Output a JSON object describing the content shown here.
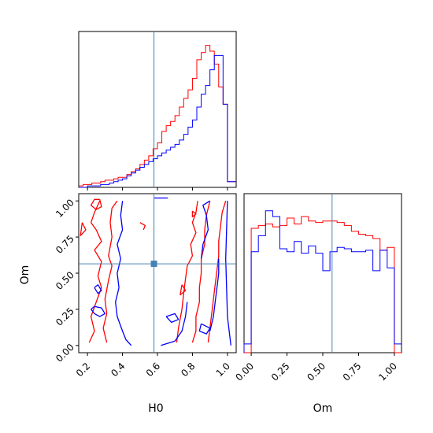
{
  "colors": {
    "series_a": "#ff0000",
    "series_b": "#0000ff",
    "truth": "#4682b4"
  },
  "chart_data": {
    "type": "corner",
    "parameters": [
      "H0",
      "Om"
    ],
    "truth": {
      "H0": 0.58,
      "Om": 0.565
    },
    "panels": [
      {
        "name": "H0-marginal",
        "type": "histogram-step",
        "xlim": [
          0.15,
          1.05
        ],
        "xticks": [
          0.2,
          0.4,
          0.6,
          0.8,
          1.0
        ],
        "bin_edges": [
          0.15,
          0.175,
          0.2,
          0.225,
          0.25,
          0.275,
          0.3,
          0.325,
          0.35,
          0.375,
          0.4,
          0.425,
          0.45,
          0.475,
          0.5,
          0.525,
          0.55,
          0.575,
          0.6,
          0.625,
          0.65,
          0.675,
          0.7,
          0.725,
          0.75,
          0.775,
          0.8,
          0.825,
          0.85,
          0.875,
          0.9,
          0.925,
          0.95,
          0.975,
          1.0,
          1.025,
          1.05
        ],
        "series": [
          {
            "name": "series_a",
            "color": "red",
            "values": [
              0.01,
              0.02,
              0.02,
              0.03,
              0.03,
              0.04,
              0.05,
              0.05,
              0.06,
              0.07,
              0.07,
              0.09,
              0.11,
              0.13,
              0.16,
              0.19,
              0.22,
              0.27,
              0.31,
              0.39,
              0.43,
              0.46,
              0.5,
              0.56,
              0.62,
              0.68,
              0.76,
              0.89,
              0.94,
              0.99,
              0.95,
              0.86,
              0.7,
              0.58,
              0.04,
              0.04
            ]
          },
          {
            "name": "series_b",
            "color": "blue",
            "values": [
              0.0,
              0.0,
              0.01,
              0.01,
              0.01,
              0.02,
              0.02,
              0.03,
              0.04,
              0.05,
              0.06,
              0.08,
              0.1,
              0.12,
              0.14,
              0.16,
              0.18,
              0.2,
              0.22,
              0.24,
              0.26,
              0.28,
              0.3,
              0.33,
              0.37,
              0.42,
              0.47,
              0.56,
              0.65,
              0.71,
              0.82,
              0.92,
              0.92,
              0.58,
              0.04,
              0.04
            ]
          }
        ]
      },
      {
        "name": "Om-marginal",
        "type": "histogram-step",
        "xlim": [
          -0.05,
          1.05
        ],
        "xticks": [
          0.0,
          0.25,
          0.5,
          0.75,
          1.0
        ],
        "tick_labels": [
          "0.00",
          "0.25",
          "0.50",
          "0.75",
          "1.00"
        ],
        "xlabel": "Om",
        "bin_edges": [
          -0.05,
          0.0,
          0.05,
          0.1,
          0.15,
          0.2,
          0.25,
          0.3,
          0.35,
          0.4,
          0.45,
          0.5,
          0.55,
          0.6,
          0.65,
          0.7,
          0.75,
          0.8,
          0.85,
          0.9,
          0.95,
          1.0,
          1.05
        ],
        "series": [
          {
            "name": "series_a",
            "color": "red",
            "values": [
              0.0,
              0.85,
              0.87,
              0.88,
              0.86,
              0.87,
              0.92,
              0.88,
              0.93,
              0.9,
              0.89,
              0.9,
              0.9,
              0.89,
              0.87,
              0.83,
              0.81,
              0.8,
              0.78,
              0.7,
              0.72,
              0.0
            ]
          },
          {
            "name": "series_b",
            "color": "blue",
            "values": [
              0.06,
              0.69,
              0.8,
              0.97,
              0.93,
              0.71,
              0.69,
              0.76,
              0.68,
              0.73,
              0.68,
              0.56,
              0.69,
              0.72,
              0.71,
              0.69,
              0.69,
              0.7,
              0.56,
              0.7,
              0.58,
              0.06
            ]
          }
        ]
      },
      {
        "name": "H0-Om-contours",
        "type": "contour",
        "xlim": [
          0.15,
          1.05
        ],
        "ylim": [
          -0.05,
          1.05
        ],
        "xticks": [
          0.2,
          0.4,
          0.6,
          0.8,
          1.0
        ],
        "yticks": [
          0.0,
          0.25,
          0.5,
          0.75,
          1.0
        ],
        "xlabel": "H0",
        "ylabel": "Om",
        "xtick_labels": [
          "0.2",
          "0.4",
          "0.6",
          "0.8",
          "1.0"
        ],
        "ytick_labels": [
          "0.00",
          "0.25",
          "0.50",
          "0.75",
          "1.00"
        ],
        "series": [
          {
            "name": "series_a",
            "color": "red",
            "curves": [
              [
                [
                  0.37,
                  1.0
                ],
                [
                  0.34,
                  0.95
                ],
                [
                  0.33,
                  0.85
                ],
                [
                  0.34,
                  0.75
                ],
                [
                  0.32,
                  0.62
                ],
                [
                  0.34,
                  0.55
                ],
                [
                  0.32,
                  0.45
                ],
                [
                  0.3,
                  0.32
                ],
                [
                  0.31,
                  0.22
                ],
                [
                  0.29,
                  0.12
                ],
                [
                  0.31,
                  0.02
                ]
              ],
              [
                [
                  0.27,
                  1.0
                ],
                [
                  0.24,
                  0.92
                ],
                [
                  0.22,
                  0.85
                ],
                [
                  0.25,
                  0.8
                ],
                [
                  0.28,
                  0.72
                ],
                [
                  0.24,
                  0.66
                ],
                [
                  0.28,
                  0.58
                ],
                [
                  0.26,
                  0.48
                ],
                [
                  0.28,
                  0.4
                ],
                [
                  0.25,
                  0.3
                ],
                [
                  0.22,
                  0.2
                ],
                [
                  0.24,
                  0.1
                ],
                [
                  0.21,
                  0.02
                ]
              ],
              [
                [
                  0.27,
                  1.01
                ],
                [
                  0.24,
                  1.01
                ],
                [
                  0.22,
                  0.97
                ],
                [
                  0.25,
                  0.94
                ],
                [
                  0.28,
                  0.96
                ],
                [
                  0.27,
                  1.01
                ]
              ],
              [
                [
                  0.17,
                  0.85
                ],
                [
                  0.19,
                  0.8
                ],
                [
                  0.16,
                  0.76
                ],
                [
                  0.17,
                  0.85
                ]
              ],
              [
                [
                  0.5,
                  0.85
                ],
                [
                  0.53,
                  0.83
                ],
                [
                  0.52,
                  0.8
                ]
              ],
              [
                [
                  0.83,
                  1.0
                ],
                [
                  0.82,
                  0.92
                ],
                [
                  0.8,
                  0.85
                ],
                [
                  0.82,
                  0.78
                ],
                [
                  0.79,
                  0.7
                ],
                [
                  0.8,
                  0.62
                ],
                [
                  0.77,
                  0.55
                ],
                [
                  0.76,
                  0.46
                ],
                [
                  0.75,
                  0.36
                ],
                [
                  0.74,
                  0.25
                ],
                [
                  0.72,
                  0.12
                ],
                [
                  0.71,
                  0.02
                ]
              ],
              [
                [
                  0.9,
                  1.0
                ],
                [
                  0.88,
                  0.9
                ],
                [
                  0.87,
                  0.8
                ],
                [
                  0.87,
                  0.7
                ],
                [
                  0.85,
                  0.6
                ],
                [
                  0.85,
                  0.5
                ],
                [
                  0.84,
                  0.4
                ],
                [
                  0.84,
                  0.3
                ],
                [
                  0.82,
                  0.2
                ],
                [
                  0.82,
                  0.1
                ],
                [
                  0.8,
                  0.02
                ]
              ],
              [
                [
                  0.99,
                  1.0
                ],
                [
                  0.97,
                  0.92
                ],
                [
                  0.96,
                  0.82
                ],
                [
                  0.95,
                  0.72
                ],
                [
                  0.95,
                  0.62
                ],
                [
                  0.94,
                  0.52
                ],
                [
                  0.93,
                  0.42
                ],
                [
                  0.92,
                  0.32
                ],
                [
                  0.91,
                  0.22
                ],
                [
                  0.9,
                  0.12
                ],
                [
                  0.89,
                  0.02
                ]
              ],
              [
                [
                  0.74,
                  0.42
                ],
                [
                  0.76,
                  0.38
                ],
                [
                  0.73,
                  0.35
                ],
                [
                  0.74,
                  0.42
                ]
              ],
              [
                [
                  0.8,
                  0.93
                ],
                [
                  0.82,
                  0.91
                ],
                [
                  0.8,
                  0.89
                ],
                [
                  0.8,
                  0.93
                ]
              ]
            ]
          },
          {
            "name": "series_b",
            "color": "blue",
            "curves": [
              [
                [
                  0.4,
                  1.0
                ],
                [
                  0.39,
                  0.9
                ],
                [
                  0.4,
                  0.8
                ],
                [
                  0.37,
                  0.7
                ],
                [
                  0.39,
                  0.6
                ],
                [
                  0.37,
                  0.5
                ],
                [
                  0.38,
                  0.4
                ],
                [
                  0.36,
                  0.3
                ],
                [
                  0.37,
                  0.2
                ],
                [
                  0.4,
                  0.1
                ],
                [
                  0.42,
                  0.04
                ],
                [
                  0.45,
                  0.0
                ]
              ],
              [
                [
                  0.22,
                  0.25
                ],
                [
                  0.24,
                  0.22
                ],
                [
                  0.27,
                  0.2
                ],
                [
                  0.3,
                  0.22
                ],
                [
                  0.28,
                  0.26
                ],
                [
                  0.24,
                  0.27
                ],
                [
                  0.22,
                  0.25
                ]
              ],
              [
                [
                  0.24,
                  0.4
                ],
                [
                  0.26,
                  0.36
                ],
                [
                  0.28,
                  0.38
                ],
                [
                  0.26,
                  0.42
                ],
                [
                  0.24,
                  0.4
                ]
              ],
              [
                [
                  0.58,
                  1.02
                ],
                [
                  0.66,
                  1.02
                ]
              ],
              [
                [
                  0.62,
                  0.0
                ],
                [
                  0.7,
                  0.03
                ],
                [
                  0.74,
                  0.1
                ],
                [
                  0.76,
                  0.2
                ],
                [
                  0.77,
                  0.3
                ]
              ],
              [
                [
                  0.65,
                  0.2
                ],
                [
                  0.68,
                  0.16
                ],
                [
                  0.72,
                  0.18
                ],
                [
                  0.7,
                  0.22
                ],
                [
                  0.65,
                  0.2
                ]
              ],
              [
                [
                  0.85,
                  0.6
                ],
                [
                  0.86,
                  0.7
                ],
                [
                  0.89,
                  0.8
                ],
                [
                  0.88,
                  0.9
                ],
                [
                  0.86,
                  0.97
                ],
                [
                  0.9,
                  1.0
                ]
              ],
              [
                [
                  0.95,
                  0.6
                ],
                [
                  0.95,
                  0.5
                ],
                [
                  0.94,
                  0.4
                ],
                [
                  0.93,
                  0.3
                ],
                [
                  0.92,
                  0.2
                ],
                [
                  0.9,
                  0.1
                ]
              ],
              [
                [
                  1.0,
                  1.0
                ],
                [
                  0.99,
                  0.6
                ],
                [
                  1.0,
                  0.2
                ],
                [
                  1.02,
                  0.0
                ]
              ],
              [
                [
                  0.85,
                  0.15
                ],
                [
                  0.9,
                  0.12
                ],
                [
                  0.88,
                  0.08
                ],
                [
                  0.84,
                  0.1
                ],
                [
                  0.85,
                  0.15
                ]
              ]
            ]
          }
        ]
      }
    ]
  }
}
